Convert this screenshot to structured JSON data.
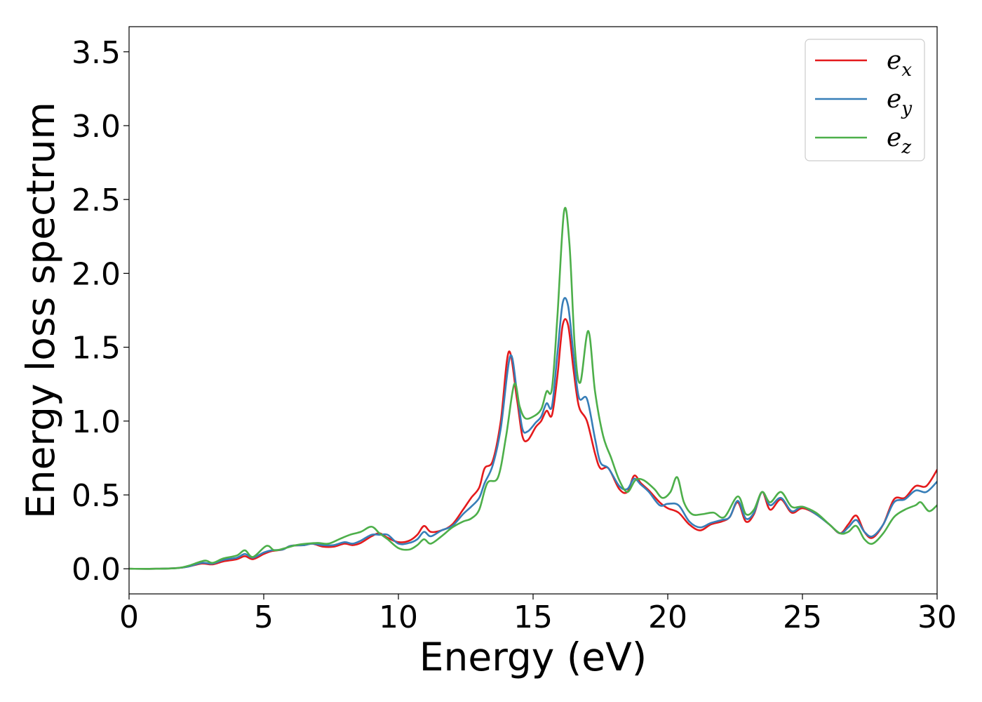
{
  "chart_data": {
    "type": "line",
    "title": "",
    "xlabel": "Energy (eV)",
    "ylabel": "Energy loss spectrum",
    "xlim": [
      0,
      30
    ],
    "ylim": [
      -0.17,
      3.67
    ],
    "xticks": [
      "0",
      "5",
      "10",
      "15",
      "20",
      "25",
      "30"
    ],
    "yticks": [
      "0.0",
      "0.5",
      "1.0",
      "1.5",
      "2.0",
      "2.5",
      "3.0",
      "3.5"
    ],
    "grid": false,
    "legend_position": "top-right",
    "series": [
      {
        "name_base": "e",
        "name_sub": "x",
        "color": "#e41a1c",
        "points": [
          [
            0,
            0
          ],
          [
            1,
            0
          ],
          [
            1.8,
            0.005
          ],
          [
            2.2,
            0.015
          ],
          [
            2.7,
            0.035
          ],
          [
            3.1,
            0.03
          ],
          [
            3.5,
            0.05
          ],
          [
            4,
            0.065
          ],
          [
            4.3,
            0.085
          ],
          [
            4.6,
            0.065
          ],
          [
            5,
            0.1
          ],
          [
            5.3,
            0.12
          ],
          [
            5.7,
            0.13
          ],
          [
            6,
            0.155
          ],
          [
            6.5,
            0.16
          ],
          [
            6.8,
            0.17
          ],
          [
            7.2,
            0.15
          ],
          [
            7.6,
            0.15
          ],
          [
            8,
            0.17
          ],
          [
            8.3,
            0.16
          ],
          [
            8.6,
            0.175
          ],
          [
            9,
            0.22
          ],
          [
            9.3,
            0.24
          ],
          [
            9.6,
            0.21
          ],
          [
            10,
            0.18
          ],
          [
            10.4,
            0.19
          ],
          [
            10.7,
            0.23
          ],
          [
            10.95,
            0.29
          ],
          [
            11.2,
            0.25
          ],
          [
            11.6,
            0.26
          ],
          [
            12,
            0.3
          ],
          [
            12.4,
            0.4
          ],
          [
            12.7,
            0.48
          ],
          [
            13,
            0.55
          ],
          [
            13.2,
            0.68
          ],
          [
            13.5,
            0.73
          ],
          [
            13.8,
            1.0
          ],
          [
            14.1,
            1.47
          ],
          [
            14.4,
            1.15
          ],
          [
            14.6,
            0.9
          ],
          [
            14.8,
            0.87
          ],
          [
            15.1,
            0.96
          ],
          [
            15.3,
            1.0
          ],
          [
            15.5,
            1.07
          ],
          [
            15.7,
            1.04
          ],
          [
            15.9,
            1.3
          ],
          [
            16.1,
            1.65
          ],
          [
            16.3,
            1.65
          ],
          [
            16.5,
            1.35
          ],
          [
            16.7,
            1.1
          ],
          [
            17,
            1.0
          ],
          [
            17.3,
            0.78
          ],
          [
            17.5,
            0.68
          ],
          [
            17.8,
            0.68
          ],
          [
            18.2,
            0.54
          ],
          [
            18.5,
            0.52
          ],
          [
            18.75,
            0.63
          ],
          [
            19,
            0.58
          ],
          [
            19.3,
            0.53
          ],
          [
            19.7,
            0.45
          ],
          [
            20,
            0.41
          ],
          [
            20.4,
            0.38
          ],
          [
            20.8,
            0.3
          ],
          [
            21.2,
            0.26
          ],
          [
            21.6,
            0.3
          ],
          [
            22,
            0.32
          ],
          [
            22.3,
            0.35
          ],
          [
            22.6,
            0.45
          ],
          [
            22.9,
            0.32
          ],
          [
            23.2,
            0.37
          ],
          [
            23.5,
            0.52
          ],
          [
            23.8,
            0.4
          ],
          [
            24.2,
            0.47
          ],
          [
            24.6,
            0.38
          ],
          [
            25,
            0.41
          ],
          [
            25.5,
            0.37
          ],
          [
            26,
            0.3
          ],
          [
            26.4,
            0.24
          ],
          [
            26.7,
            0.3
          ],
          [
            27,
            0.36
          ],
          [
            27.3,
            0.25
          ],
          [
            27.6,
            0.21
          ],
          [
            28,
            0.3
          ],
          [
            28.4,
            0.47
          ],
          [
            28.8,
            0.48
          ],
          [
            29.2,
            0.56
          ],
          [
            29.6,
            0.56
          ],
          [
            30,
            0.67
          ]
        ]
      },
      {
        "name_base": "e",
        "name_sub": "y",
        "color": "#377eb8",
        "points": [
          [
            0,
            0
          ],
          [
            1,
            0
          ],
          [
            1.8,
            0.005
          ],
          [
            2.2,
            0.015
          ],
          [
            2.7,
            0.04
          ],
          [
            3.1,
            0.035
          ],
          [
            3.5,
            0.06
          ],
          [
            4,
            0.075
          ],
          [
            4.3,
            0.1
          ],
          [
            4.6,
            0.075
          ],
          [
            5,
            0.11
          ],
          [
            5.3,
            0.125
          ],
          [
            5.7,
            0.13
          ],
          [
            6,
            0.155
          ],
          [
            6.5,
            0.16
          ],
          [
            6.8,
            0.17
          ],
          [
            7.2,
            0.16
          ],
          [
            7.6,
            0.16
          ],
          [
            8,
            0.18
          ],
          [
            8.3,
            0.17
          ],
          [
            8.6,
            0.19
          ],
          [
            9,
            0.23
          ],
          [
            9.3,
            0.23
          ],
          [
            9.6,
            0.23
          ],
          [
            10,
            0.17
          ],
          [
            10.4,
            0.175
          ],
          [
            10.7,
            0.2
          ],
          [
            10.95,
            0.25
          ],
          [
            11.2,
            0.22
          ],
          [
            11.6,
            0.26
          ],
          [
            12,
            0.29
          ],
          [
            12.4,
            0.37
          ],
          [
            12.7,
            0.42
          ],
          [
            13,
            0.48
          ],
          [
            13.2,
            0.58
          ],
          [
            13.5,
            0.7
          ],
          [
            13.8,
            0.95
          ],
          [
            14.15,
            1.44
          ],
          [
            14.4,
            1.2
          ],
          [
            14.6,
            0.95
          ],
          [
            14.8,
            0.93
          ],
          [
            15.1,
            0.99
          ],
          [
            15.3,
            1.03
          ],
          [
            15.5,
            1.12
          ],
          [
            15.7,
            1.1
          ],
          [
            15.9,
            1.45
          ],
          [
            16.1,
            1.8
          ],
          [
            16.3,
            1.78
          ],
          [
            16.5,
            1.45
          ],
          [
            16.7,
            1.16
          ],
          [
            17,
            1.15
          ],
          [
            17.3,
            0.88
          ],
          [
            17.5,
            0.72
          ],
          [
            17.8,
            0.68
          ],
          [
            18.2,
            0.56
          ],
          [
            18.5,
            0.54
          ],
          [
            18.75,
            0.61
          ],
          [
            19,
            0.57
          ],
          [
            19.3,
            0.52
          ],
          [
            19.7,
            0.43
          ],
          [
            20,
            0.44
          ],
          [
            20.4,
            0.43
          ],
          [
            20.8,
            0.32
          ],
          [
            21.2,
            0.28
          ],
          [
            21.6,
            0.31
          ],
          [
            22,
            0.33
          ],
          [
            22.3,
            0.35
          ],
          [
            22.6,
            0.46
          ],
          [
            22.9,
            0.34
          ],
          [
            23.2,
            0.38
          ],
          [
            23.5,
            0.52
          ],
          [
            23.8,
            0.43
          ],
          [
            24.2,
            0.48
          ],
          [
            24.6,
            0.39
          ],
          [
            25,
            0.42
          ],
          [
            25.5,
            0.37
          ],
          [
            26,
            0.3
          ],
          [
            26.4,
            0.24
          ],
          [
            26.7,
            0.28
          ],
          [
            27,
            0.33
          ],
          [
            27.3,
            0.25
          ],
          [
            27.6,
            0.22
          ],
          [
            28,
            0.3
          ],
          [
            28.4,
            0.45
          ],
          [
            28.8,
            0.47
          ],
          [
            29.2,
            0.53
          ],
          [
            29.6,
            0.52
          ],
          [
            30,
            0.59
          ]
        ]
      },
      {
        "name_base": "e",
        "name_sub": "z",
        "color": "#4daf4a",
        "points": [
          [
            0,
            0
          ],
          [
            1,
            0
          ],
          [
            1.8,
            0.005
          ],
          [
            2.2,
            0.02
          ],
          [
            2.8,
            0.055
          ],
          [
            3.1,
            0.04
          ],
          [
            3.5,
            0.07
          ],
          [
            4,
            0.09
          ],
          [
            4.3,
            0.125
          ],
          [
            4.6,
            0.08
          ],
          [
            5.1,
            0.155
          ],
          [
            5.4,
            0.125
          ],
          [
            5.8,
            0.14
          ],
          [
            6.2,
            0.16
          ],
          [
            6.6,
            0.17
          ],
          [
            7,
            0.175
          ],
          [
            7.4,
            0.17
          ],
          [
            7.8,
            0.2
          ],
          [
            8.2,
            0.23
          ],
          [
            8.6,
            0.25
          ],
          [
            9,
            0.285
          ],
          [
            9.3,
            0.24
          ],
          [
            9.6,
            0.2
          ],
          [
            10,
            0.14
          ],
          [
            10.4,
            0.13
          ],
          [
            10.7,
            0.16
          ],
          [
            10.95,
            0.2
          ],
          [
            11.2,
            0.17
          ],
          [
            11.6,
            0.22
          ],
          [
            12,
            0.28
          ],
          [
            12.4,
            0.32
          ],
          [
            12.7,
            0.34
          ],
          [
            13,
            0.4
          ],
          [
            13.3,
            0.58
          ],
          [
            13.7,
            0.62
          ],
          [
            14,
            0.9
          ],
          [
            14.3,
            1.25
          ],
          [
            14.5,
            1.1
          ],
          [
            14.7,
            1.02
          ],
          [
            15,
            1.03
          ],
          [
            15.3,
            1.08
          ],
          [
            15.5,
            1.2
          ],
          [
            15.7,
            1.22
          ],
          [
            15.9,
            1.7
          ],
          [
            16.15,
            2.42
          ],
          [
            16.35,
            2.2
          ],
          [
            16.55,
            1.5
          ],
          [
            16.75,
            1.26
          ],
          [
            17.05,
            1.61
          ],
          [
            17.3,
            1.2
          ],
          [
            17.6,
            0.9
          ],
          [
            17.9,
            0.75
          ],
          [
            18.2,
            0.6
          ],
          [
            18.5,
            0.52
          ],
          [
            18.8,
            0.6
          ],
          [
            19.1,
            0.6
          ],
          [
            19.5,
            0.54
          ],
          [
            19.8,
            0.48
          ],
          [
            20.1,
            0.52
          ],
          [
            20.35,
            0.62
          ],
          [
            20.6,
            0.45
          ],
          [
            20.9,
            0.37
          ],
          [
            21.3,
            0.37
          ],
          [
            21.7,
            0.38
          ],
          [
            22.1,
            0.35
          ],
          [
            22.6,
            0.49
          ],
          [
            22.9,
            0.37
          ],
          [
            23.2,
            0.4
          ],
          [
            23.5,
            0.52
          ],
          [
            23.8,
            0.45
          ],
          [
            24.2,
            0.52
          ],
          [
            24.6,
            0.42
          ],
          [
            25,
            0.42
          ],
          [
            25.5,
            0.38
          ],
          [
            26,
            0.3
          ],
          [
            26.4,
            0.24
          ],
          [
            26.7,
            0.25
          ],
          [
            27,
            0.29
          ],
          [
            27.3,
            0.2
          ],
          [
            27.6,
            0.17
          ],
          [
            28,
            0.24
          ],
          [
            28.4,
            0.35
          ],
          [
            28.8,
            0.4
          ],
          [
            29.2,
            0.43
          ],
          [
            29.4,
            0.45
          ],
          [
            29.7,
            0.39
          ],
          [
            30,
            0.43
          ]
        ]
      }
    ]
  }
}
